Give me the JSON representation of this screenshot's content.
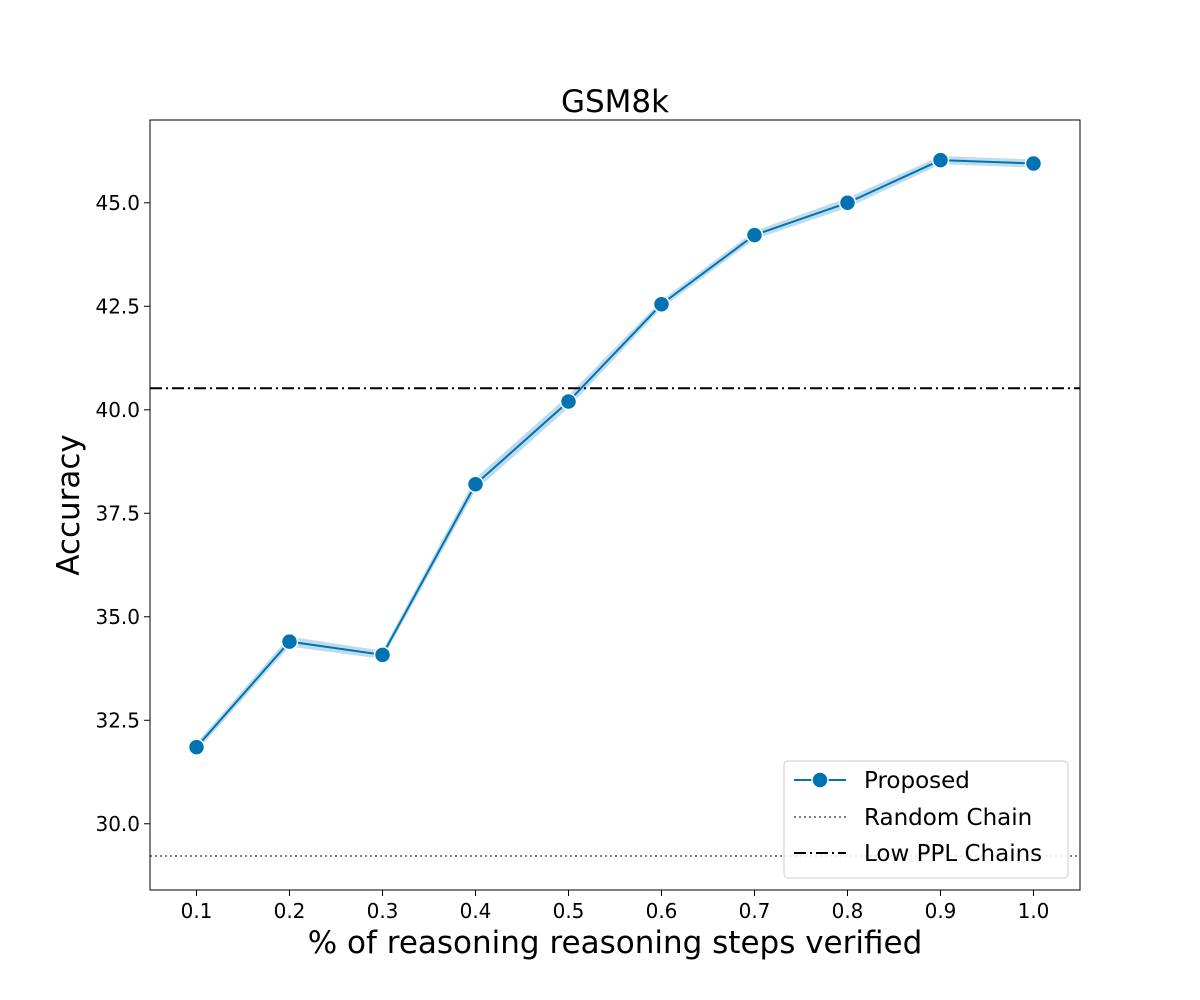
{
  "chart_data": {
    "type": "line",
    "title": "GSM8k",
    "xlabel": "% of reasoning reasoning steps verified",
    "ylabel": "Accuracy",
    "xlim": [
      0.05,
      1.05
    ],
    "ylim": [
      28.4,
      47.0
    ],
    "xticks": [
      "0.1",
      "0.2",
      "0.3",
      "0.4",
      "0.5",
      "0.6",
      "0.7",
      "0.8",
      "0.9",
      "1.0"
    ],
    "yticks": [
      "30.0",
      "32.5",
      "35.0",
      "37.5",
      "40.0",
      "42.5",
      "45.0"
    ],
    "grid": false,
    "legend_position": "lower-right",
    "series": [
      {
        "name": "Proposed",
        "color": "#0173b2",
        "band_color": "#0173b2",
        "x": [
          0.1,
          0.2,
          0.3,
          0.4,
          0.5,
          0.6,
          0.7,
          0.8,
          0.9,
          1.0
        ],
        "y": [
          31.85,
          34.4,
          34.08,
          38.2,
          40.2,
          42.55,
          44.22,
          45.0,
          46.03,
          45.95
        ],
        "lower": [
          31.75,
          34.28,
          33.98,
          38.05,
          40.05,
          42.45,
          44.12,
          44.88,
          45.93,
          45.85
        ],
        "upper": [
          31.95,
          34.52,
          34.18,
          38.35,
          40.35,
          42.65,
          44.32,
          45.12,
          46.13,
          46.05
        ]
      }
    ],
    "reference_lines": [
      {
        "name": "Random Chain",
        "y": 29.22,
        "style": "dotted",
        "color": "#808080"
      },
      {
        "name": "Low PPL Chains",
        "y": 40.52,
        "style": "dashdot",
        "color": "#000000"
      }
    ]
  }
}
